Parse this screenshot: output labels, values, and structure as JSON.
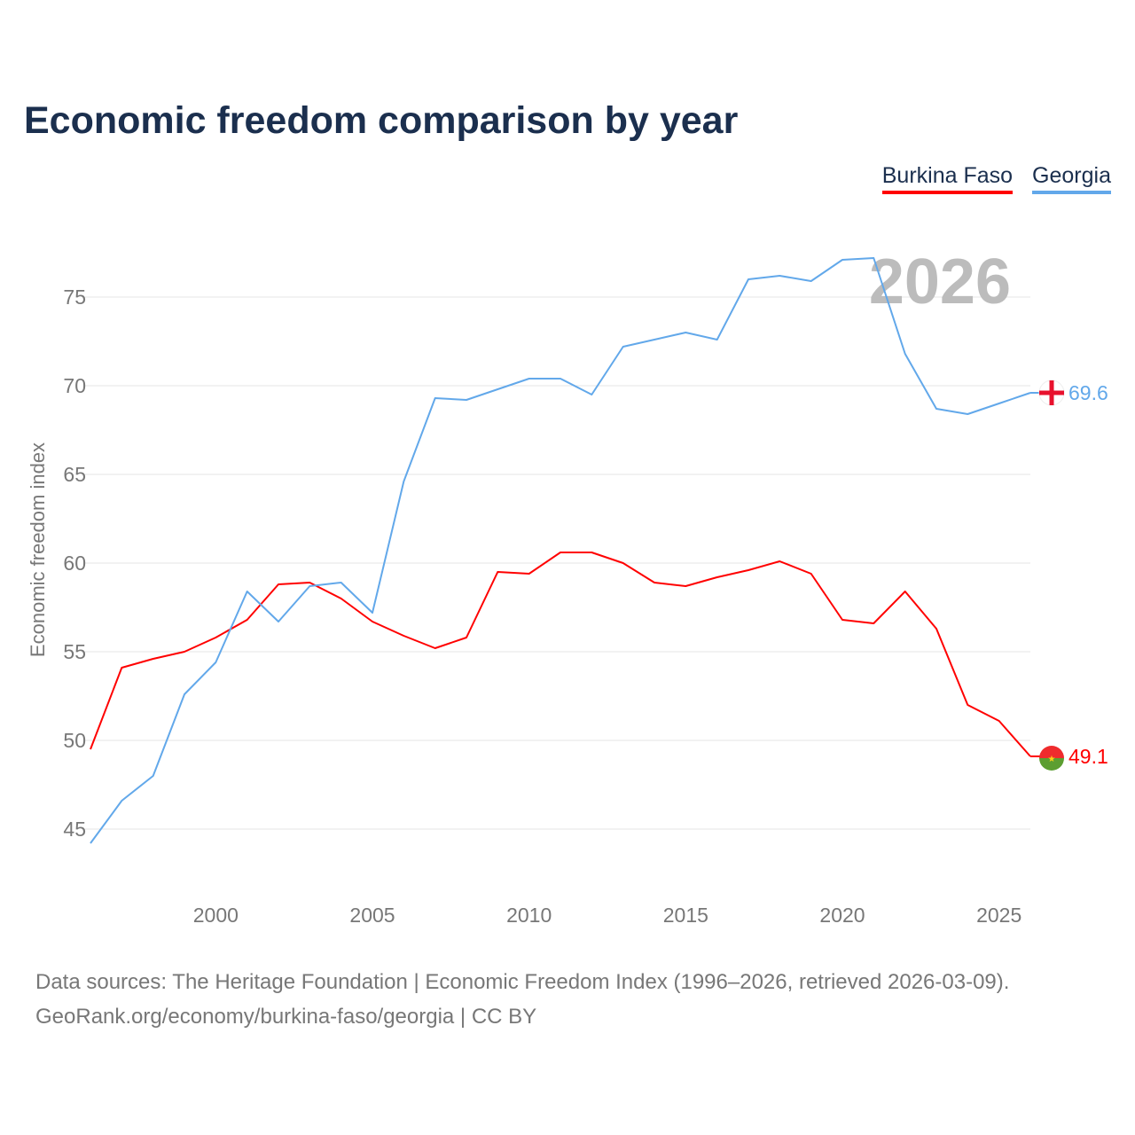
{
  "chart_data": {
    "type": "line",
    "title": "Economic freedom comparison by year",
    "xlabel": "",
    "ylabel": "Economic freedom index",
    "xlim": [
      1996,
      2026
    ],
    "ylim": [
      41,
      78
    ],
    "x_ticks": [
      "2000",
      "2005",
      "2010",
      "2015",
      "2020",
      "2025"
    ],
    "y_ticks": [
      "45",
      "50",
      "55",
      "60",
      "65",
      "70",
      "75"
    ],
    "grid": true,
    "legend_position": "top-right",
    "year_watermark": "2026",
    "x": [
      1996,
      1997,
      1998,
      1999,
      2000,
      2001,
      2002,
      2003,
      2004,
      2005,
      2006,
      2007,
      2008,
      2009,
      2010,
      2011,
      2012,
      2013,
      2014,
      2015,
      2016,
      2017,
      2018,
      2019,
      2020,
      2021,
      2022,
      2023,
      2024,
      2025,
      2026
    ],
    "series": [
      {
        "name": "Burkina Faso",
        "color": "#ff0000",
        "end_label": "49.1",
        "values": [
          49.5,
          54.1,
          54.6,
          55.0,
          55.8,
          56.8,
          58.8,
          58.9,
          58.0,
          56.7,
          55.9,
          55.2,
          55.8,
          59.5,
          59.4,
          60.6,
          60.6,
          60.0,
          58.9,
          58.7,
          59.2,
          59.6,
          60.1,
          59.4,
          56.8,
          56.6,
          58.4,
          56.3,
          52.0,
          51.1,
          49.1
        ]
      },
      {
        "name": "Georgia",
        "color": "#62a8ea",
        "end_label": "69.6",
        "values": [
          44.2,
          46.6,
          48.0,
          52.6,
          54.4,
          58.4,
          56.7,
          58.7,
          58.9,
          57.2,
          64.6,
          69.3,
          69.2,
          69.8,
          70.4,
          70.4,
          69.5,
          72.2,
          72.6,
          73.0,
          72.6,
          76.0,
          76.2,
          75.9,
          77.1,
          77.2,
          71.8,
          68.7,
          68.4,
          69.0,
          69.6
        ]
      }
    ]
  },
  "source": {
    "line1": "Data sources: The Heritage Foundation | Economic Freedom Index (1996–2026, retrieved 2026-03-09).",
    "line2": "GeoRank.org/economy/burkina-faso/georgia | CC BY"
  }
}
